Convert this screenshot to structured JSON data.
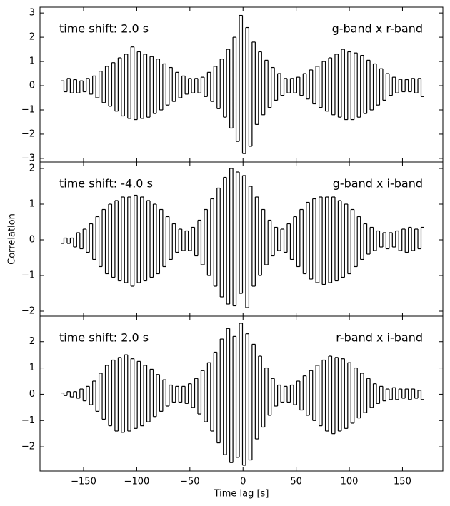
{
  "chart_data": [
    {
      "type": "line",
      "drawstyle": "steps-mid",
      "color": "#000000",
      "annotations": [
        "time shift: 2.0 s",
        "g-band x r-band"
      ],
      "x": [
        -170,
        -167,
        -164,
        -161,
        -158,
        -155,
        -152,
        -149,
        -146,
        -143,
        -140,
        -137,
        -134,
        -131,
        -128,
        -125,
        -122,
        -119,
        -116,
        -113,
        -110,
        -107,
        -104,
        -101,
        -98,
        -95,
        -92,
        -89,
        -86,
        -83,
        -80,
        -77,
        -74,
        -71,
        -68,
        -65,
        -62,
        -59,
        -56,
        -53,
        -50,
        -47,
        -44,
        -41,
        -38,
        -35,
        -32,
        -29,
        -26,
        -23,
        -20,
        -17,
        -14,
        -11,
        -8,
        -5,
        -2,
        1,
        4,
        7,
        10,
        13,
        16,
        19,
        22,
        25,
        28,
        31,
        34,
        37,
        40,
        43,
        46,
        49,
        52,
        55,
        58,
        61,
        64,
        67,
        70,
        73,
        76,
        79,
        82,
        85,
        88,
        91,
        94,
        97,
        100,
        103,
        106,
        109,
        112,
        115,
        118,
        121,
        124,
        127,
        130,
        133,
        136,
        139,
        142,
        145,
        148,
        151,
        154,
        157,
        160,
        163,
        166,
        169
      ],
      "values": [
        0.2,
        -0.25,
        0.3,
        -0.3,
        0.25,
        -0.3,
        0.2,
        -0.25,
        0.3,
        -0.35,
        0.4,
        -0.5,
        0.6,
        -0.7,
        0.8,
        -0.85,
        0.95,
        -1.05,
        1.15,
        -1.25,
        1.3,
        -1.35,
        1.6,
        -1.4,
        1.4,
        -1.35,
        1.3,
        -1.3,
        1.2,
        -1.15,
        1.1,
        -1.0,
        0.9,
        -0.8,
        0.75,
        -0.65,
        0.55,
        -0.5,
        0.4,
        -0.35,
        0.3,
        -0.3,
        0.3,
        -0.3,
        0.35,
        -0.45,
        0.55,
        -0.65,
        0.8,
        -0.95,
        1.1,
        -1.3,
        1.5,
        -1.75,
        2.0,
        -2.3,
        2.9,
        -2.8,
        2.4,
        -2.5,
        1.8,
        -1.6,
        1.4,
        -1.2,
        1.05,
        -0.9,
        0.75,
        -0.6,
        0.5,
        -0.4,
        0.3,
        -0.3,
        0.3,
        -0.3,
        0.35,
        -0.4,
        0.5,
        -0.55,
        0.65,
        -0.75,
        0.8,
        -0.9,
        1.0,
        -1.05,
        1.15,
        -1.2,
        1.3,
        -1.3,
        1.5,
        -1.4,
        1.4,
        -1.4,
        1.35,
        -1.3,
        1.25,
        -1.15,
        1.05,
        -1.0,
        0.9,
        -0.8,
        0.7,
        -0.6,
        0.5,
        -0.4,
        0.35,
        -0.3,
        0.26,
        -0.25,
        0.25,
        -0.25,
        0.3,
        -0.3,
        0.3,
        -0.45
      ],
      "xlim": [
        -191,
        188
      ],
      "xticks": [
        -150,
        -100,
        -50,
        0,
        50,
        100,
        150
      ],
      "show_xtick_labels": false,
      "ylim": [
        -3.15,
        3.24
      ],
      "yticks": [
        {
          "value": -3,
          "label": "−3"
        },
        {
          "value": -2,
          "label": "−2"
        },
        {
          "value": -1,
          "label": "−1"
        },
        0,
        1,
        2,
        3
      ]
    },
    {
      "type": "line",
      "drawstyle": "steps-mid",
      "color": "#000000",
      "annotations": [
        "time shift: -4.0 s",
        "g-band x i-band"
      ],
      "ylabel": "Correlation",
      "x": [
        -170,
        -167,
        -164,
        -161,
        -158,
        -155,
        -152,
        -149,
        -146,
        -143,
        -140,
        -137,
        -134,
        -131,
        -128,
        -125,
        -122,
        -119,
        -116,
        -113,
        -110,
        -107,
        -104,
        -101,
        -98,
        -95,
        -92,
        -89,
        -86,
        -83,
        -80,
        -77,
        -74,
        -71,
        -68,
        -65,
        -62,
        -59,
        -56,
        -53,
        -50,
        -47,
        -44,
        -41,
        -38,
        -35,
        -32,
        -29,
        -26,
        -23,
        -20,
        -17,
        -14,
        -11,
        -8,
        -5,
        -2,
        1,
        4,
        7,
        10,
        13,
        16,
        19,
        22,
        25,
        28,
        31,
        34,
        37,
        40,
        43,
        46,
        49,
        52,
        55,
        58,
        61,
        64,
        67,
        70,
        73,
        76,
        79,
        82,
        85,
        88,
        91,
        94,
        97,
        100,
        103,
        106,
        109,
        112,
        115,
        118,
        121,
        124,
        127,
        130,
        133,
        136,
        139,
        142,
        145,
        148,
        151,
        154,
        157,
        160,
        163,
        166,
        169
      ],
      "values": [
        -0.1,
        0.05,
        -0.1,
        0.05,
        -0.2,
        0.2,
        -0.25,
        0.3,
        -0.35,
        0.45,
        -0.55,
        0.65,
        -0.75,
        0.85,
        -0.95,
        1.0,
        -1.05,
        1.1,
        -1.15,
        1.2,
        -1.2,
        1.2,
        -1.3,
        1.25,
        -1.2,
        1.2,
        -1.15,
        1.1,
        -1.05,
        1.0,
        -0.95,
        0.85,
        -0.75,
        0.65,
        -0.55,
        0.45,
        -0.35,
        0.3,
        -0.3,
        0.25,
        -0.3,
        0.35,
        -0.45,
        0.55,
        -0.7,
        0.85,
        -1.0,
        1.15,
        -1.3,
        1.45,
        -1.6,
        1.75,
        -1.8,
        2.0,
        -1.85,
        1.9,
        -1.5,
        1.8,
        -1.9,
        1.5,
        -1.3,
        1.2,
        -1.0,
        0.85,
        -0.7,
        0.55,
        -0.45,
        0.35,
        -0.3,
        0.3,
        -0.35,
        0.45,
        -0.55,
        0.65,
        -0.75,
        0.85,
        -0.95,
        1.05,
        -1.1,
        1.15,
        -1.2,
        1.2,
        -1.25,
        1.2,
        -1.2,
        1.2,
        -1.15,
        1.1,
        -1.05,
        1.0,
        -0.95,
        0.85,
        -0.75,
        0.65,
        -0.55,
        0.45,
        -0.4,
        0.35,
        -0.3,
        0.25,
        -0.2,
        0.2,
        -0.25,
        0.2,
        -0.2,
        0.25,
        -0.3,
        0.3,
        -0.35,
        0.35,
        -0.3,
        0.3,
        -0.25,
        0.35
      ],
      "xlim": [
        -191,
        188
      ],
      "xticks": [
        -150,
        -100,
        -50,
        0,
        50,
        100,
        150
      ],
      "show_xtick_labels": false,
      "ylim": [
        -2.14,
        2.18
      ],
      "yticks": [
        {
          "value": -2,
          "label": "−2"
        },
        {
          "value": -1,
          "label": "−1"
        },
        0,
        1,
        2
      ]
    },
    {
      "type": "line",
      "drawstyle": "steps-mid",
      "color": "#000000",
      "annotations": [
        "time shift: 2.0 s",
        "r-band x i-band"
      ],
      "xlabel": "Time lag [s]",
      "x": [
        -170,
        -167,
        -164,
        -161,
        -158,
        -155,
        -152,
        -149,
        -146,
        -143,
        -140,
        -137,
        -134,
        -131,
        -128,
        -125,
        -122,
        -119,
        -116,
        -113,
        -110,
        -107,
        -104,
        -101,
        -98,
        -95,
        -92,
        -89,
        -86,
        -83,
        -80,
        -77,
        -74,
        -71,
        -68,
        -65,
        -62,
        -59,
        -56,
        -53,
        -50,
        -47,
        -44,
        -41,
        -38,
        -35,
        -32,
        -29,
        -26,
        -23,
        -20,
        -17,
        -14,
        -11,
        -8,
        -5,
        -2,
        1,
        4,
        7,
        10,
        13,
        16,
        19,
        22,
        25,
        28,
        31,
        34,
        37,
        40,
        43,
        46,
        49,
        52,
        55,
        58,
        61,
        64,
        67,
        70,
        73,
        76,
        79,
        82,
        85,
        88,
        91,
        94,
        97,
        100,
        103,
        106,
        109,
        112,
        115,
        118,
        121,
        124,
        127,
        130,
        133,
        136,
        139,
        142,
        145,
        148,
        151,
        154,
        157,
        160,
        163,
        166,
        169
      ],
      "values": [
        0.05,
        -0.05,
        0.1,
        -0.1,
        0.1,
        -0.15,
        0.2,
        -0.25,
        0.3,
        -0.4,
        0.5,
        -0.65,
        0.8,
        -0.95,
        1.1,
        -1.2,
        1.3,
        -1.4,
        1.4,
        -1.45,
        1.5,
        -1.4,
        1.35,
        -1.3,
        1.25,
        -1.2,
        1.1,
        -1.05,
        0.95,
        -0.85,
        0.75,
        -0.65,
        0.55,
        -0.45,
        0.35,
        -0.3,
        0.3,
        -0.3,
        0.3,
        -0.35,
        0.4,
        -0.5,
        0.6,
        -0.75,
        0.9,
        -1.05,
        1.2,
        -1.4,
        1.6,
        -1.85,
        2.1,
        -2.3,
        2.5,
        -2.6,
        2.2,
        -2.4,
        2.7,
        -2.7,
        2.3,
        -2.5,
        1.9,
        -1.7,
        1.45,
        -1.25,
        1.0,
        -0.8,
        0.6,
        -0.45,
        0.35,
        -0.3,
        0.3,
        -0.3,
        0.35,
        -0.4,
        0.5,
        -0.6,
        0.7,
        -0.8,
        0.9,
        -1.0,
        1.1,
        -1.2,
        1.3,
        -1.4,
        1.45,
        -1.5,
        1.4,
        -1.4,
        1.35,
        -1.3,
        1.2,
        -1.1,
        1.0,
        -0.9,
        0.8,
        -0.7,
        0.6,
        -0.5,
        0.4,
        -0.35,
        0.3,
        -0.25,
        0.2,
        -0.2,
        0.25,
        -0.2,
        0.2,
        -0.15,
        0.2,
        -0.2,
        0.2,
        -0.15,
        0.15,
        -0.2
      ],
      "xlim": [
        -191,
        188
      ],
      "xticks": [
        {
          "value": -150,
          "label": "−150"
        },
        {
          "value": -100,
          "label": "−100"
        },
        {
          "value": -50,
          "label": "−50"
        },
        0,
        50,
        100,
        150
      ],
      "show_xtick_labels": true,
      "ylim": [
        -2.92,
        2.97
      ],
      "yticks": [
        {
          "value": -2,
          "label": "−2"
        },
        {
          "value": -1,
          "label": "−1"
        },
        0,
        1,
        2
      ]
    }
  ]
}
